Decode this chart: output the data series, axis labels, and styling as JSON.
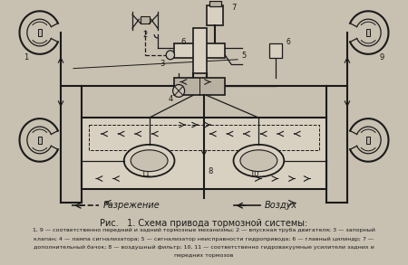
{
  "title": "Рис.   1. Схема привода тормозной системы:",
  "caption_lines": [
    "1, 9 — соответственно передний и задний тормозные механизмы; 2 — впускная труба двигателя; 3 — запорный",
    "клапан; 4 — лампа сигнализатора; 5 — сигнализатор неисправности гидропривода; 6 — главный цилиндр; 7 —",
    "дополнительный бачок; 8 — воздушный фильтр; 10, 11 — соответственно гидровакуумные усилители задних и",
    "передних тормозов"
  ],
  "legend_left_label": "Разрежение",
  "legend_right_label": "Воздух",
  "bg_color": "#c8c0b0",
  "line_color": "#1a1a1a",
  "fill_light": "#d8d0c0",
  "fill_mid": "#b8b0a0",
  "fig_width": 4.5,
  "fig_height": 2.93,
  "dpi": 100
}
